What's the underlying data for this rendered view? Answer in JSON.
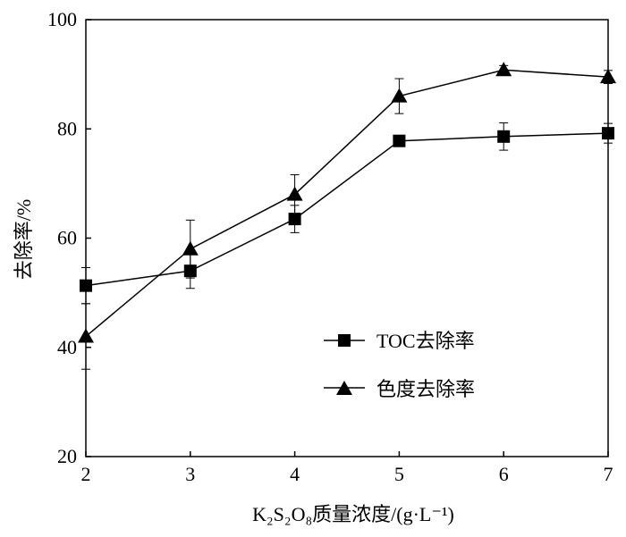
{
  "chart_data": {
    "type": "line",
    "x": [
      2,
      3,
      4,
      5,
      6,
      7
    ],
    "xlim": [
      2,
      7
    ],
    "ylim": [
      20,
      100
    ],
    "xticks": [
      "2",
      "3",
      "4",
      "5",
      "6",
      "7"
    ],
    "yticks": [
      "20",
      "40",
      "60",
      "80",
      "100"
    ],
    "xlabel": "K₂S₂O₈质量浓度/(g·L⁻¹)",
    "ylabel": "去除率/%",
    "grid": false,
    "legend_position": "lower-right",
    "series": [
      {
        "name": "TOC去除率",
        "marker": "square",
        "values": [
          51.3,
          54.0,
          63.5,
          77.8,
          78.6,
          79.2
        ],
        "error": [
          3.3,
          3.2,
          2.5,
          0.8,
          2.5,
          1.8
        ]
      },
      {
        "name": "色度去除率",
        "marker": "triangle",
        "values": [
          42.0,
          58.0,
          68.0,
          86.0,
          90.8,
          89.5
        ],
        "error": [
          6.0,
          5.3,
          3.6,
          3.2,
          0.8,
          1.2
        ]
      }
    ]
  }
}
